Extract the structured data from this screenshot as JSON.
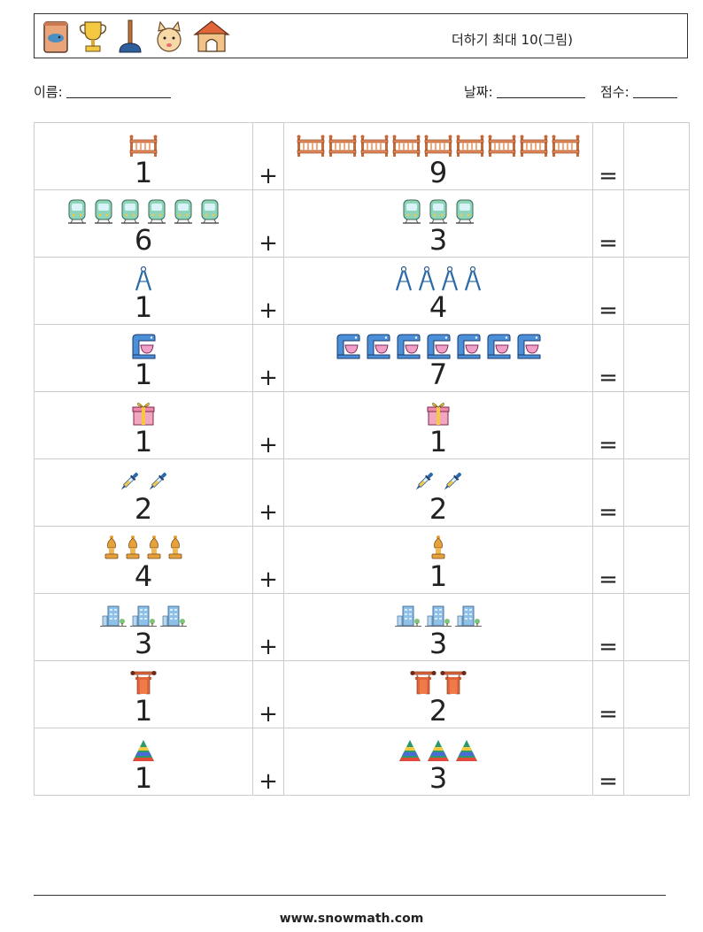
{
  "header": {
    "title": "더하기 최대 10(그림)",
    "icons": [
      "cat-food-icon",
      "trophy-icon",
      "plunger-icon",
      "cat-face-icon",
      "doghouse-icon"
    ]
  },
  "meta": {
    "name_label": "이름:",
    "date_label": "날짜:",
    "score_label": "점수:"
  },
  "operator": "+",
  "equals": "=",
  "rows": [
    {
      "a": 1,
      "b": 9,
      "icon": "fence-icon"
    },
    {
      "a": 6,
      "b": 3,
      "icon": "tram-icon"
    },
    {
      "a": 1,
      "b": 4,
      "icon": "compass-icon"
    },
    {
      "a": 1,
      "b": 7,
      "icon": "stand-mixer-icon"
    },
    {
      "a": 1,
      "b": 1,
      "icon": "gift-box-icon"
    },
    {
      "a": 2,
      "b": 2,
      "icon": "dropper-icon"
    },
    {
      "a": 4,
      "b": 1,
      "icon": "bishop-chess-icon"
    },
    {
      "a": 3,
      "b": 3,
      "icon": "office-building-icon"
    },
    {
      "a": 1,
      "b": 2,
      "icon": "torii-gate-icon"
    },
    {
      "a": 1,
      "b": 3,
      "icon": "striped-cone-icon"
    }
  ],
  "footer": "www.snowmath.com"
}
